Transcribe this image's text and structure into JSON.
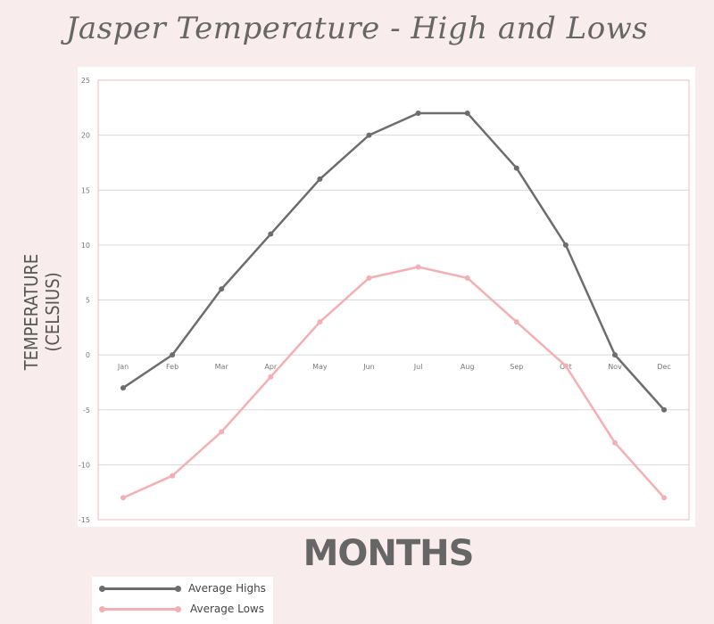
{
  "colors": {
    "background": "#f9ecec",
    "highs": "#6d6d6d",
    "lows": "#f4afb4",
    "border": "#f2b8bd",
    "grid": "#d9d9d9"
  },
  "chart_data": {
    "type": "line",
    "title": "Jasper Temperature - High and Lows",
    "xlabel": "MONTHS",
    "ylabel": "TEMPERATURE\n(CELSIUS)",
    "categories": [
      "Jan",
      "Feb",
      "Mar",
      "Apr",
      "May",
      "Jun",
      "Jul",
      "Aug",
      "Sep",
      "Oct",
      "Nov",
      "Dec"
    ],
    "yticks": [
      "25",
      "20",
      "15",
      "10",
      "5",
      "0",
      "-5",
      "-10",
      "-15"
    ],
    "ylim": [
      -15,
      25
    ],
    "grid": true,
    "legend_position": "bottom-left",
    "series": [
      {
        "name": "Average Highs",
        "values": [
          -3,
          0,
          6,
          11,
          16,
          20,
          22,
          22,
          17,
          10,
          0,
          -5
        ]
      },
      {
        "name": "Average Lows",
        "values": [
          -13,
          -11,
          -7,
          -2,
          3,
          7,
          8,
          7,
          3,
          -1,
          -8,
          -13
        ]
      }
    ]
  }
}
